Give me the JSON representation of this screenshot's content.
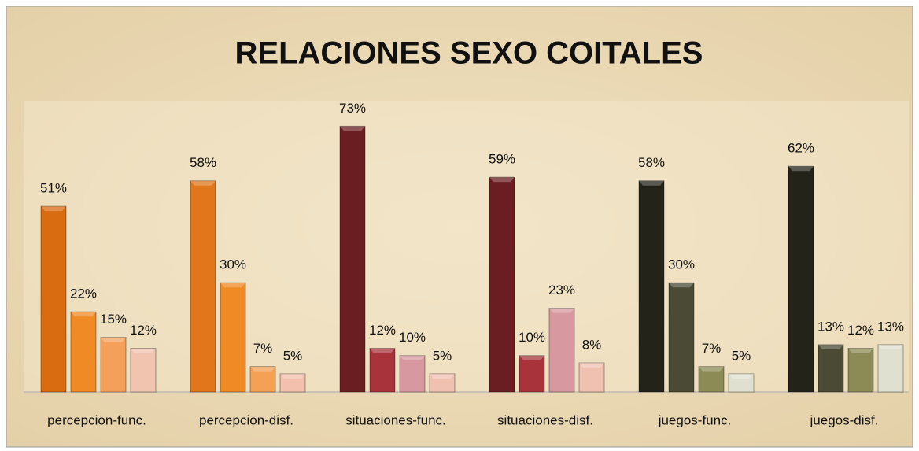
{
  "chart_data": {
    "type": "bar",
    "title": "RELACIONES SEXO COITALES",
    "categories": [
      "percepcion-func.",
      "percepcion-disf.",
      "situaciones-func.",
      "situaciones-disf.",
      "juegos-func.",
      "juegos-disf."
    ],
    "ylim": [
      0,
      80
    ],
    "series": [
      {
        "values": [
          51,
          58,
          73,
          59,
          58,
          62
        ],
        "value_labels": [
          "51%",
          "58%",
          "73%",
          "59%",
          "58%",
          "62%"
        ],
        "colors": [
          "#d96b10",
          "#e2761a",
          "#6b1e22",
          "#6b1e22",
          "#23231a",
          "#23231a"
        ]
      },
      {
        "values": [
          22,
          30,
          12,
          10,
          30,
          13
        ],
        "value_labels": [
          "22%",
          "30%",
          "12%",
          "10%",
          "30%",
          "13%"
        ],
        "colors": [
          "#f08a24",
          "#f08a24",
          "#a8333a",
          "#a8333a",
          "#4a4a35",
          "#4a4a35"
        ]
      },
      {
        "values": [
          15,
          7,
          10,
          23,
          7,
          12
        ],
        "value_labels": [
          "15%",
          "7%",
          "10%",
          "23%",
          "7%",
          "12%"
        ],
        "colors": [
          "#f5a05a",
          "#f4a055",
          "#d898a0",
          "#d898a0",
          "#8c8a55",
          "#8c8a55"
        ]
      },
      {
        "values": [
          12,
          5,
          5,
          8,
          5,
          13
        ],
        "value_labels": [
          "12%",
          "5%",
          "5%",
          "8%",
          "5%",
          "13%"
        ],
        "colors": [
          "#f1c4b0",
          "#f2c0ad",
          "#f0c0b0",
          "#f0c0b0",
          "#e0e0d0",
          "#e0e0d0"
        ]
      }
    ]
  }
}
